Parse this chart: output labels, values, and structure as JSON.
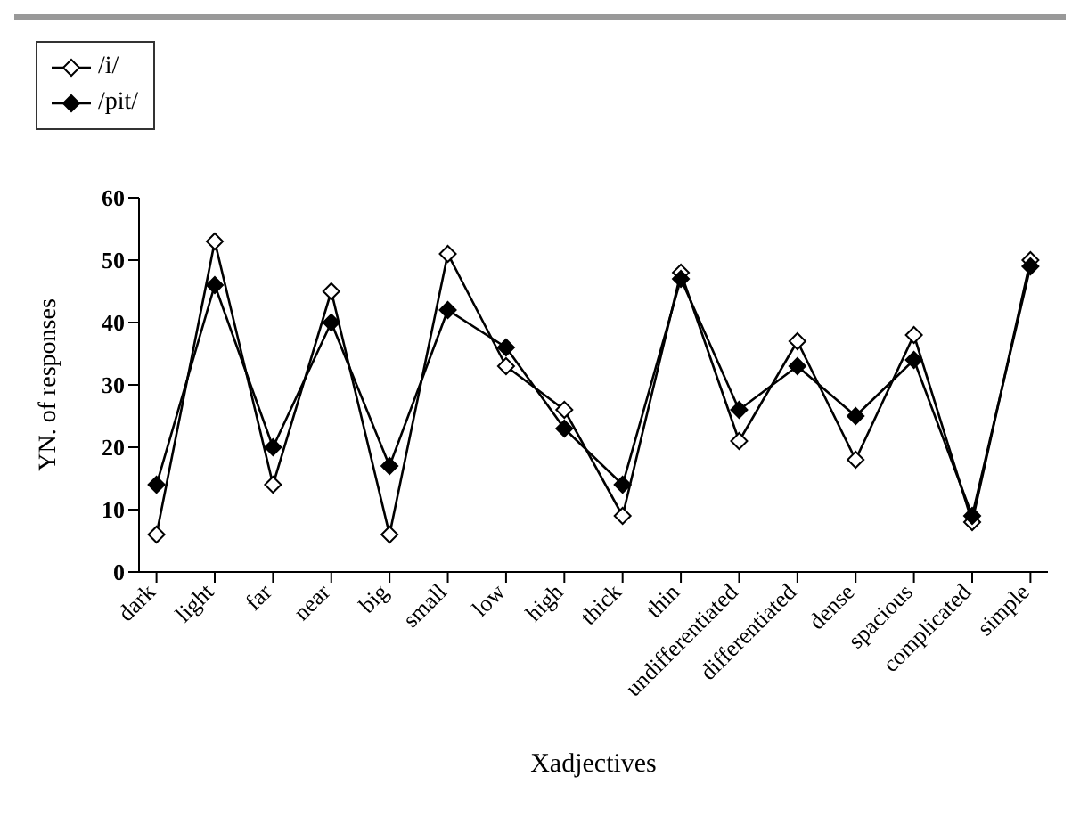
{
  "chart_data": {
    "type": "line",
    "xlabel": "Xadjectives",
    "ylabel": "YN. of responses",
    "categories": [
      "dark",
      "light",
      "far",
      "near",
      "big",
      "small",
      "low",
      "high",
      "thick",
      "thin",
      "undifferentiated",
      "differentiated",
      "dense",
      "spacious",
      "complicated",
      "simple"
    ],
    "series": [
      {
        "name": "/i/",
        "color": "#000000",
        "values": [
          6,
          53,
          14,
          45,
          6,
          51,
          33,
          26,
          9,
          48,
          21,
          37,
          18,
          38,
          8,
          50
        ]
      },
      {
        "name": "/pit/",
        "color": "#000000",
        "values": [
          14,
          46,
          20,
          40,
          17,
          42,
          36,
          23,
          14,
          47,
          26,
          33,
          25,
          34,
          9,
          49
        ]
      }
    ],
    "ylim": [
      0,
      60
    ],
    "yticks": [
      0,
      10,
      20,
      30,
      40,
      50,
      60
    ],
    "legend": "top left",
    "marker": "diamond",
    "line_style": "solid"
  }
}
